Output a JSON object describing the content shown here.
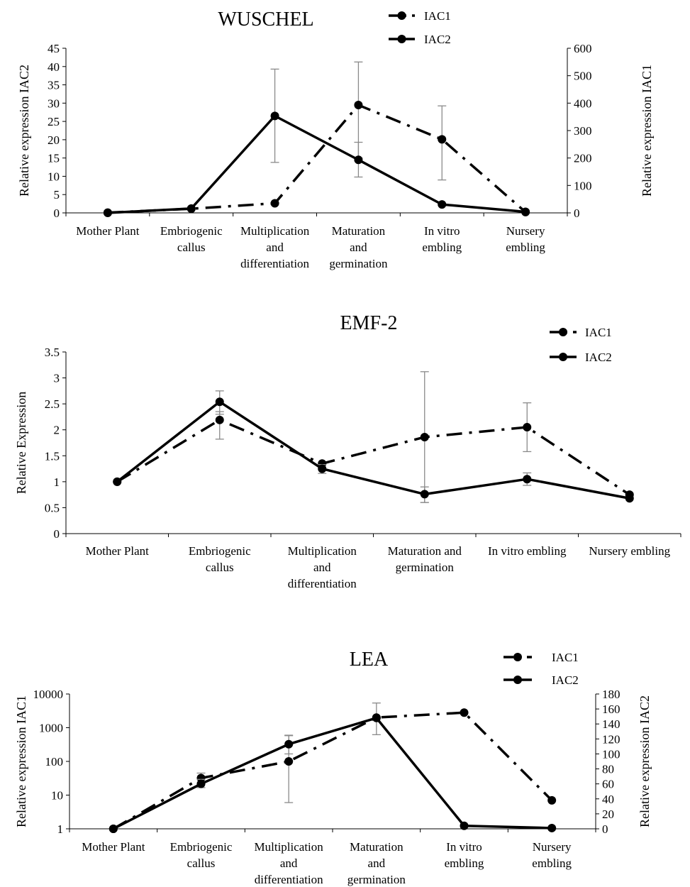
{
  "chart_data": [
    {
      "type": "line",
      "title": "WUSCHEL",
      "categories": [
        [
          "Mother Plant"
        ],
        [
          "Embriogenic",
          "callus"
        ],
        [
          "Multiplication",
          "and",
          "differentiation"
        ],
        [
          "Maturation",
          "and",
          "germination"
        ],
        [
          "In vitro",
          "embling"
        ],
        [
          "Nursery",
          "embling"
        ]
      ],
      "ylabel_left": "Relative expression IAC2",
      "ylabel_right": "Relative expression IAC1",
      "ylim_left": [
        0,
        45
      ],
      "yticks_left": [
        "0",
        "5",
        "10",
        "15",
        "20",
        "25",
        "30",
        "35",
        "40",
        "45"
      ],
      "ylim_right": [
        0,
        600
      ],
      "yticks_right": [
        "0",
        "100",
        "200",
        "300",
        "400",
        "500",
        "600"
      ],
      "legend_position": "top-right",
      "series": [
        {
          "name": "IAC1",
          "axis": "right",
          "style": "dashdot",
          "values": [
            1,
            15,
            35,
            393,
            268,
            3
          ],
          "err_low": [
            null,
            null,
            null,
            200,
            120,
            null
          ],
          "err_high": [
            null,
            null,
            null,
            550,
            390,
            null
          ]
        },
        {
          "name": "IAC2",
          "axis": "left",
          "style": "solid",
          "values": [
            0,
            1.2,
            26.5,
            14.5,
            2.3,
            0.3
          ],
          "err_low": [
            null,
            null,
            13.8,
            9.8,
            null,
            null
          ],
          "err_high": [
            null,
            null,
            39.3,
            19.3,
            null,
            null
          ]
        }
      ]
    },
    {
      "type": "line",
      "title": "EMF-2",
      "categories": [
        [
          "Mother Plant"
        ],
        [
          "Embriogenic",
          "callus"
        ],
        [
          "Multiplication",
          "and",
          "differentiation"
        ],
        [
          "Maturation and",
          "germination"
        ],
        [
          "In vitro embling"
        ],
        [
          "Nursery embling"
        ]
      ],
      "ylabel_left": "Relative Expression",
      "ylim_left": [
        0,
        3.5
      ],
      "yticks_left": [
        "0",
        "0.5",
        "1",
        "1.5",
        "2",
        "2.5",
        "3",
        "3.5"
      ],
      "legend_position": "top-right",
      "series": [
        {
          "name": "IAC1",
          "axis": "left",
          "style": "dashdot",
          "values": [
            1,
            2.19,
            1.35,
            1.86,
            2.05,
            0.75
          ],
          "err_low": [
            null,
            1.82,
            null,
            0.6,
            1.58,
            null
          ],
          "err_high": [
            null,
            2.35,
            null,
            3.12,
            2.52,
            null
          ]
        },
        {
          "name": "IAC2",
          "axis": "left",
          "style": "solid",
          "values": [
            1,
            2.54,
            1.25,
            0.76,
            1.05,
            0.68
          ],
          "err_low": [
            null,
            2.3,
            1.16,
            0.6,
            0.93,
            null
          ],
          "err_high": [
            null,
            2.75,
            1.33,
            0.9,
            1.17,
            null
          ]
        }
      ]
    },
    {
      "type": "line",
      "title": "LEA",
      "categories": [
        [
          "Mother Plant"
        ],
        [
          "Embriogenic",
          "callus"
        ],
        [
          "Multiplication",
          "and",
          "differentiation"
        ],
        [
          "Maturation",
          "and",
          "germination"
        ],
        [
          "In vitro",
          "embling"
        ],
        [
          "Nursery",
          "embling"
        ]
      ],
      "ylabel_left": "Relative expression IAC1",
      "ylabel_right": "Relative expression IAC2",
      "yscale_left": "log",
      "ylim_left": [
        1,
        10000
      ],
      "yticks_left": [
        "1",
        "10",
        "100",
        "1000",
        "10000"
      ],
      "ylim_right": [
        0,
        180
      ],
      "yticks_right": [
        "0",
        "20",
        "40",
        "60",
        "80",
        "100",
        "120",
        "140",
        "160",
        "180"
      ],
      "legend_position": "top-right",
      "series": [
        {
          "name": "IAC1",
          "axis": "left",
          "style": "dashdot",
          "values": [
            1,
            32,
            100,
            2000,
            2800,
            7
          ],
          "err_low": [
            null,
            22,
            6,
            620,
            null,
            null
          ],
          "err_high": [
            null,
            45,
            580,
            5400,
            null,
            null
          ]
        },
        {
          "name": "IAC2",
          "axis": "right",
          "style": "solid",
          "values": [
            0,
            60,
            113,
            148,
            4,
            1
          ],
          "err_low": [
            null,
            55,
            100,
            null,
            null,
            null
          ],
          "err_high": [
            null,
            66,
            125,
            null,
            null,
            null
          ]
        }
      ]
    }
  ]
}
